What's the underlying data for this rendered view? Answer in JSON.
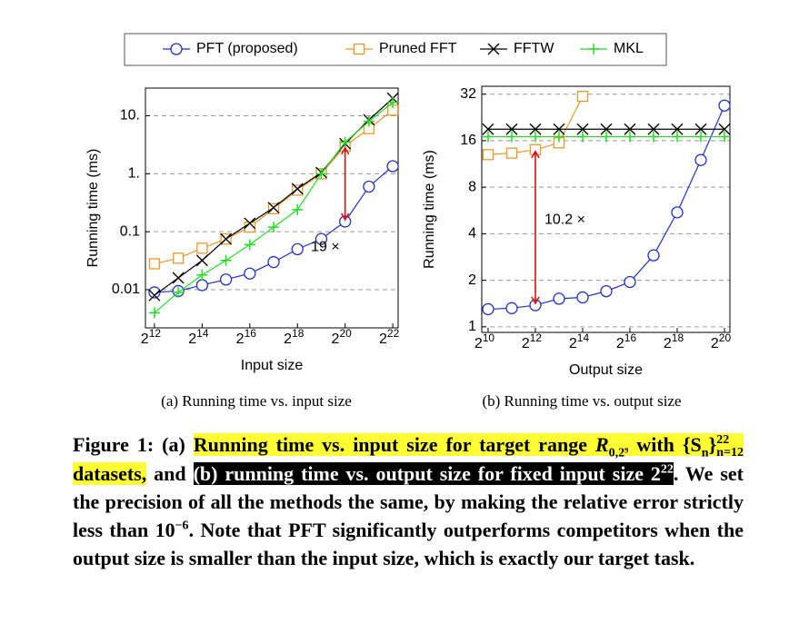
{
  "chart_data": [
    {
      "type": "line",
      "caption": "(a) Running time vs. input size",
      "xlabel": "Input size",
      "ylabel": "Running time (ms)",
      "xscale": "log",
      "yscale": "log",
      "grid": true,
      "x": [
        4096,
        8192,
        16384,
        32768,
        65536,
        131072,
        262144,
        524288,
        1048576,
        2097152,
        4194304
      ],
      "xlim": [
        3150,
        4900000
      ],
      "xticks": [
        {
          "value": 4096,
          "label": "2",
          "sup": "12"
        },
        {
          "value": 16384,
          "label": "2",
          "sup": "14"
        },
        {
          "value": 65536,
          "label": "2",
          "sup": "16"
        },
        {
          "value": 262144,
          "label": "2",
          "sup": "18"
        },
        {
          "value": 1048576,
          "label": "2",
          "sup": "20"
        },
        {
          "value": 4194304,
          "label": "2",
          "sup": "22"
        }
      ],
      "ylim": [
        0.0022,
        30
      ],
      "yticks": [
        0.01,
        0.1,
        {
          "value": 1,
          "label": "1."
        },
        {
          "value": 10,
          "label": "10."
        }
      ],
      "series": [
        {
          "name": "PFT (proposed)",
          "color": "#1f2fd0",
          "marker": "circle",
          "values": [
            0.009,
            0.0095,
            0.012,
            0.015,
            0.019,
            0.03,
            0.05,
            0.075,
            0.15,
            0.6,
            1.35
          ]
        },
        {
          "name": "Pruned FFT",
          "color": "#f0962a",
          "marker": "square",
          "values": [
            0.028,
            0.035,
            0.052,
            0.075,
            0.12,
            0.25,
            0.52,
            1.0,
            3.0,
            6.0,
            12.5
          ]
        },
        {
          "name": "FFTW",
          "color": "#000000",
          "marker": "x",
          "values": [
            0.008,
            0.016,
            0.032,
            0.075,
            0.14,
            0.26,
            0.55,
            1.05,
            3.3,
            8.5,
            20
          ]
        },
        {
          "name": "MKL",
          "color": "#22dd22",
          "marker": "plus",
          "values": [
            0.004,
            0.009,
            0.018,
            0.032,
            0.06,
            0.12,
            0.24,
            1.0,
            3.5,
            8.0,
            17
          ]
        }
      ],
      "annotation": {
        "text": "19 ×",
        "color": "#e01010",
        "x": 1048576,
        "from": 3.0,
        "to": 0.15
      }
    },
    {
      "type": "line",
      "caption": "(b) Running time vs. output size",
      "xlabel": "Output size",
      "ylabel": "Running time (ms)",
      "xscale": "log",
      "yscale": "log",
      "grid": true,
      "x": [
        1024,
        2048,
        4096,
        8192,
        16384,
        32768,
        65536,
        131072,
        262144,
        524288,
        1048576
      ],
      "xlim": [
        850,
        1230000
      ],
      "xticks": [
        {
          "value": 1024,
          "label": "2",
          "sup": "10"
        },
        {
          "value": 4096,
          "label": "2",
          "sup": "12"
        },
        {
          "value": 16384,
          "label": "2",
          "sup": "14"
        },
        {
          "value": 65536,
          "label": "2",
          "sup": "16"
        },
        {
          "value": 262144,
          "label": "2",
          "sup": "18"
        },
        {
          "value": 1048576,
          "label": "2",
          "sup": "20"
        }
      ],
      "ylim": [
        0.92,
        36
      ],
      "yticks": [
        1,
        2,
        4,
        8,
        16,
        32
      ],
      "series": [
        {
          "color": "#1f2fd0",
          "marker": "circle",
          "values": [
            1.3,
            1.32,
            1.38,
            1.52,
            1.55,
            1.7,
            1.95,
            2.9,
            5.5,
            12,
            27
          ]
        },
        {
          "color": "#f0962a",
          "marker": "square",
          "values": [
            13,
            13.3,
            14,
            15.5,
            31,
            null,
            null,
            null,
            null,
            null,
            null
          ]
        },
        {
          "color": "#000000",
          "marker": "x",
          "values": [
            19,
            19,
            19,
            19,
            19,
            19,
            19,
            19,
            19,
            19,
            19
          ]
        },
        {
          "color": "#22dd22",
          "marker": "plus",
          "values": [
            17,
            17,
            17,
            17,
            17,
            17,
            17,
            17,
            17,
            17,
            17
          ]
        }
      ],
      "annotation": {
        "text": "10.2 ×",
        "color": "#e01010",
        "x": 4096,
        "from": 14,
        "to": 1.38
      }
    }
  ],
  "caption": {
    "segments": [
      {
        "text": "Figure 1: (a) "
      },
      {
        "text": "Running time vs. input size for target range ",
        "hl": "yellow"
      },
      {
        "text": "R",
        "sub": "0,2⁹",
        "hl": "yellow",
        "italic": true
      },
      {
        "text": " with ",
        "hl": "yellow"
      },
      {
        "text": "{S",
        "sub": "n",
        "hl": "yellow"
      },
      {
        "text": "}",
        "sub": "n=12",
        "sup": "22",
        "hl": "yellow"
      },
      {
        "text": " datasets,",
        "hl": "yellow"
      },
      {
        "text": " and "
      },
      {
        "text": "(b) running time vs. output size for fixed input size 2",
        "sup": "22",
        "hl": "black"
      },
      {
        "text": ". We set the precision of all the methods the same, by making the relative error strictly less than 10",
        "sup": "−6"
      },
      {
        "text": ". Note that PFT significantly outperforms competitors when the output size is smaller than the input size, which is exactly our target task."
      }
    ]
  }
}
